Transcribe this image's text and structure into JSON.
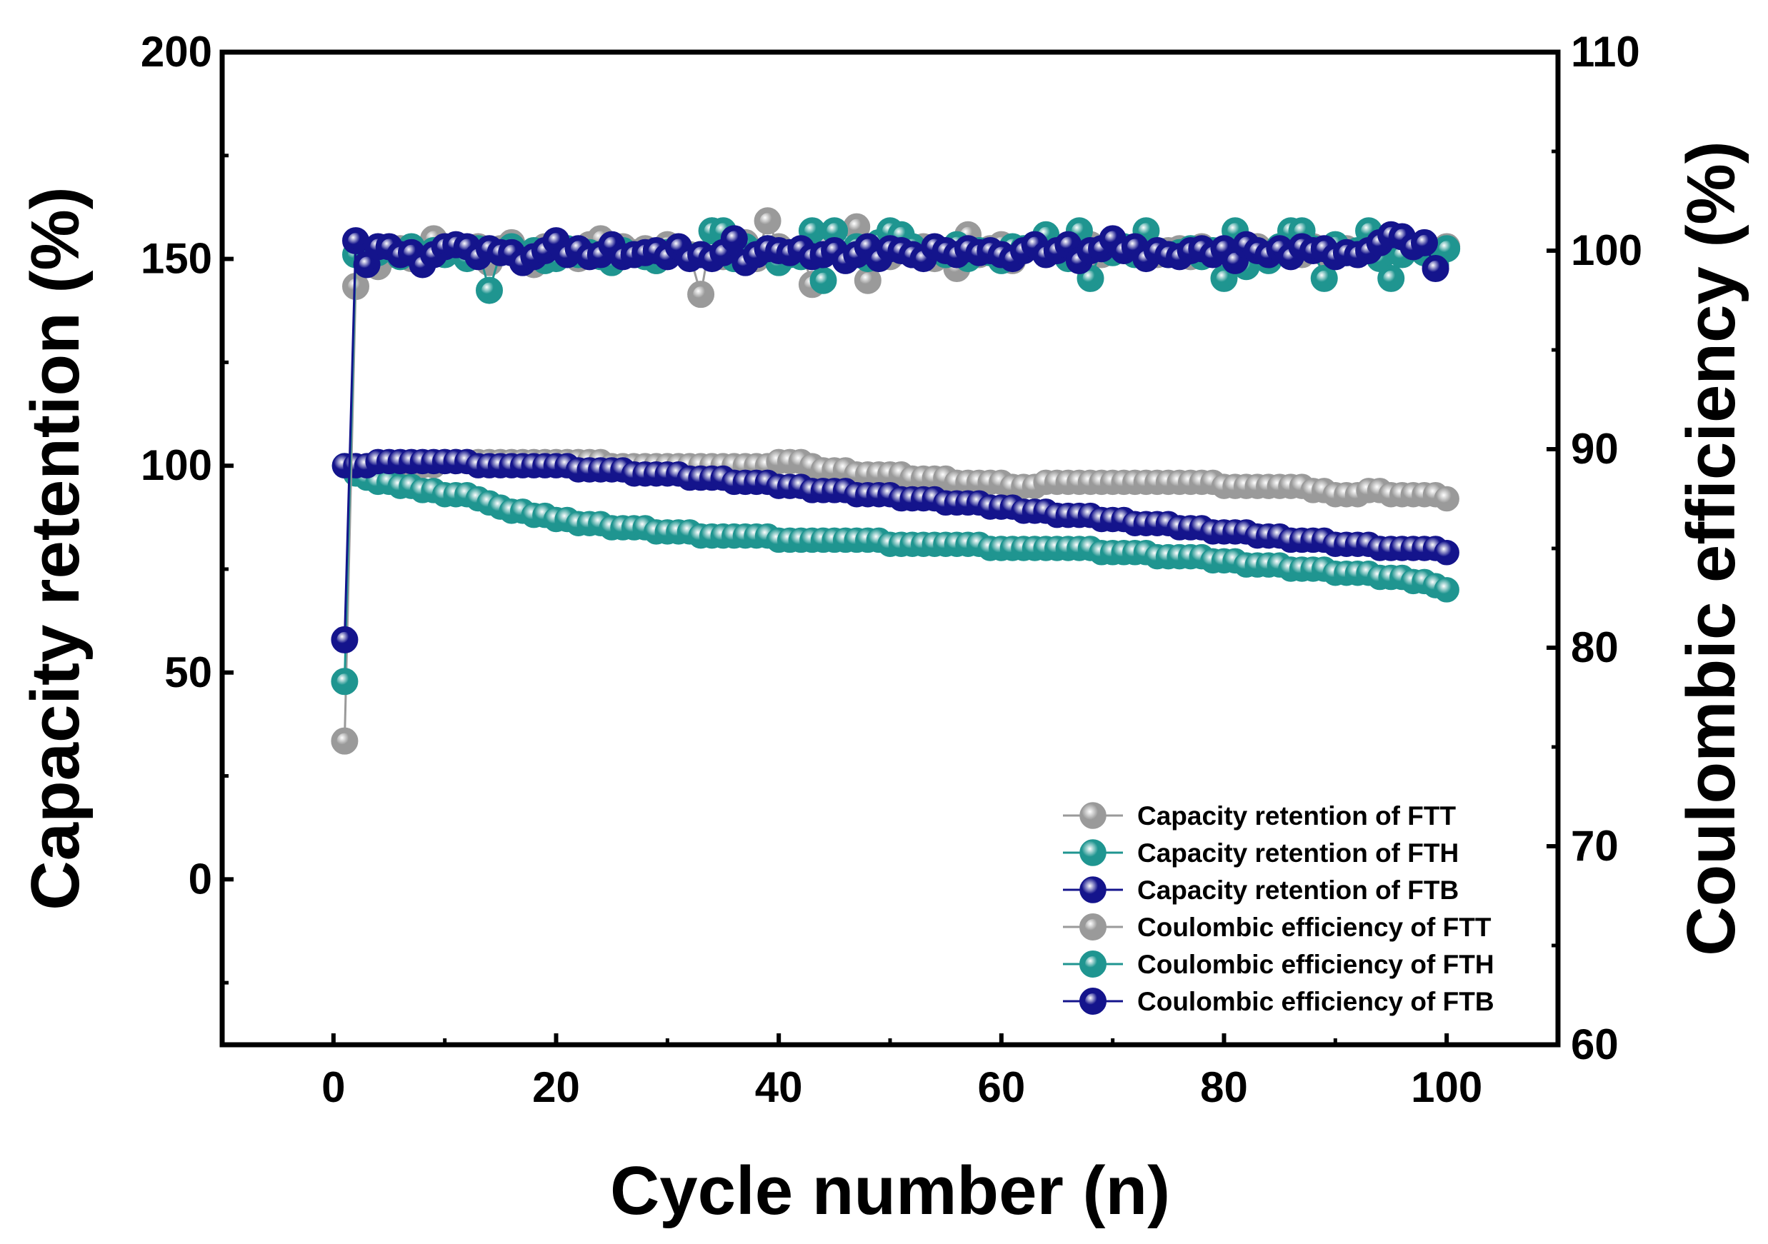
{
  "chart_data": {
    "type": "scatter",
    "xlabel": "Cycle number (n)",
    "ylabel": "Capacity retention (%)",
    "y2label": "Coulombic efficiency (%)",
    "xlim": [
      -10,
      110
    ],
    "ylim": [
      -40,
      200
    ],
    "y2lim": [
      60,
      110
    ],
    "xticks": [
      0,
      20,
      40,
      60,
      80,
      100
    ],
    "yticks": [
      0,
      50,
      100,
      150,
      200
    ],
    "y2ticks": [
      60,
      70,
      80,
      90,
      100,
      110
    ],
    "legend_position": "bottom-right",
    "series": [
      {
        "name": "Capacity retention of FTT",
        "axis": "left",
        "style": "solid",
        "color": "#9a9a9a",
        "values": [
          100,
          100,
          100,
          100,
          100,
          100,
          100,
          100,
          100,
          101,
          101,
          101,
          101,
          101,
          101,
          101,
          101,
          101,
          101,
          101,
          101,
          101,
          101,
          101,
          100,
          100,
          100,
          100,
          100,
          100,
          100,
          100,
          100,
          100,
          100,
          100,
          100,
          100,
          100,
          101,
          101,
          101,
          100,
          99,
          99,
          99,
          98,
          98,
          98,
          98,
          98,
          97,
          97,
          97,
          97,
          96,
          96,
          96,
          96,
          96,
          95,
          95,
          95,
          96,
          96,
          96,
          96,
          96,
          96,
          96,
          96,
          96,
          96,
          96,
          96,
          96,
          96,
          96,
          96,
          95,
          95,
          95,
          95,
          95,
          95,
          95,
          95,
          94,
          94,
          93,
          93,
          93,
          94,
          94,
          93,
          93,
          93,
          93,
          93,
          92
        ]
      },
      {
        "name": "Capacity retention of FTH",
        "axis": "left",
        "style": "solid",
        "color": "#1f9590",
        "values": [
          100,
          98,
          97,
          96,
          96,
          95,
          95,
          94,
          94,
          93,
          93,
          93,
          92,
          91,
          90,
          89,
          89,
          88,
          88,
          87,
          87,
          86,
          86,
          86,
          85,
          85,
          85,
          85,
          84,
          84,
          84,
          84,
          83,
          83,
          83,
          83,
          83,
          83,
          83,
          82,
          82,
          82,
          82,
          82,
          82,
          82,
          82,
          82,
          82,
          81,
          81,
          81,
          81,
          81,
          81,
          81,
          81,
          81,
          80,
          80,
          80,
          80,
          80,
          80,
          80,
          80,
          80,
          80,
          79,
          79,
          79,
          79,
          79,
          78,
          78,
          78,
          78,
          78,
          77,
          77,
          77,
          76,
          76,
          76,
          76,
          75,
          75,
          75,
          75,
          74,
          74,
          74,
          74,
          73,
          73,
          73,
          72,
          72,
          71,
          70
        ]
      },
      {
        "name": "Capacity retention of FTB",
        "axis": "left",
        "style": "solid",
        "color": "#14148c",
        "values": [
          100,
          100,
          100,
          101,
          101,
          101,
          101,
          101,
          101,
          101,
          101,
          101,
          100,
          100,
          100,
          100,
          100,
          100,
          100,
          100,
          100,
          99,
          99,
          99,
          99,
          99,
          98,
          98,
          98,
          98,
          98,
          97,
          97,
          97,
          97,
          96,
          96,
          96,
          96,
          95,
          95,
          95,
          94,
          94,
          94,
          94,
          93,
          93,
          93,
          93,
          92,
          92,
          92,
          92,
          91,
          91,
          91,
          91,
          90,
          90,
          90,
          89,
          89,
          89,
          88,
          88,
          88,
          88,
          87,
          87,
          87,
          86,
          86,
          86,
          86,
          85,
          85,
          85,
          84,
          84,
          84,
          84,
          83,
          83,
          83,
          82,
          82,
          82,
          82,
          81,
          81,
          81,
          81,
          80,
          80,
          80,
          80,
          80,
          80,
          79
        ]
      },
      {
        "name": "Coulombic efficiency of FTT",
        "axis": "right",
        "style": "hollow",
        "color": "#9a9a9a",
        "values": [
          75.3,
          98.2,
          99.5,
          99.2,
          99.8,
          100.1,
          99.6,
          99.9,
          100.6,
          100.2,
          100.0,
          99.8,
          100.2,
          99.4,
          100.1,
          100.4,
          99.7,
          99.3,
          100.2,
          99.8,
          100.1,
          99.6,
          100.3,
          100.6,
          99.8,
          100.2,
          99.9,
          100.1,
          99.5,
          100.3,
          100.0,
          99.8,
          97.8,
          101.0,
          99.7,
          100.2,
          100.4,
          99.6,
          101.5,
          100.2,
          99.8,
          100.1,
          98.3,
          100.3,
          100.0,
          99.6,
          101.2,
          98.5,
          100.1,
          99.7,
          100.4,
          99.9,
          100.2,
          99.6,
          100.0,
          99.1,
          100.8,
          99.8,
          100.1,
          100.3,
          99.5,
          100.0,
          100.2,
          99.8,
          100.1,
          100.0,
          99.7,
          100.3,
          99.8,
          100.1,
          100.0,
          99.9,
          100.2,
          99.8,
          100.0,
          100.1,
          99.7,
          100.2,
          99.9,
          100.0,
          100.1,
          99.8,
          100.2,
          99.9,
          100.0,
          100.1,
          99.8,
          100.2,
          99.9,
          100.0,
          100.1,
          99.8,
          100.2,
          99.9,
          100.0,
          100.1,
          100.2,
          99.9,
          100.0,
          100.2
        ]
      },
      {
        "name": "Coulombic efficiency of FTH",
        "axis": "right",
        "style": "hollow",
        "color": "#1f9590",
        "values": [
          78.3,
          99.8,
          99.6,
          99.9,
          100.1,
          99.7,
          100.2,
          99.5,
          100.0,
          99.8,
          100.2,
          99.6,
          100.1,
          98.0,
          99.9,
          100.2,
          99.7,
          100.0,
          99.5,
          99.6,
          100.1,
          99.8,
          99.9,
          99.7,
          99.4,
          100.0,
          99.8,
          99.7,
          99.5,
          99.9,
          100.0,
          99.7,
          99.8,
          101.0,
          101.0,
          99.6,
          100.2,
          99.9,
          100.1,
          99.4,
          99.8,
          99.7,
          101.0,
          98.5,
          101.0,
          99.8,
          100.2,
          99.6,
          100.4,
          101.0,
          100.8,
          100.2,
          99.7,
          100.0,
          99.8,
          100.3,
          99.6,
          100.0,
          99.9,
          99.5,
          100.2,
          100.1,
          100.3,
          100.8,
          100.1,
          99.6,
          101.0,
          98.6,
          100.1,
          99.9,
          100.2,
          99.8,
          101.0,
          100.0,
          99.8,
          99.9,
          100.1,
          99.7,
          100.0,
          98.6,
          101.0,
          99.2,
          100.0,
          99.5,
          100.2,
          101.0,
          101.0,
          100.1,
          98.6,
          100.3,
          99.9,
          100.0,
          101.0,
          99.6,
          98.6,
          99.8,
          100.2,
          99.9,
          99.3,
          100.1
        ]
      },
      {
        "name": "Coulombic efficiency of FTB",
        "axis": "right",
        "style": "hollow",
        "color": "#14148c",
        "values": [
          80.4,
          100.5,
          99.3,
          100.2,
          100.2,
          99.8,
          99.9,
          99.3,
          99.8,
          100.2,
          100.3,
          100.2,
          99.7,
          100.1,
          99.9,
          99.9,
          99.4,
          99.7,
          100.0,
          100.5,
          99.8,
          100.1,
          99.7,
          99.8,
          100.3,
          99.7,
          99.8,
          99.9,
          100.0,
          99.7,
          100.2,
          99.6,
          99.8,
          99.6,
          99.9,
          100.6,
          99.4,
          99.8,
          100.1,
          100.0,
          99.9,
          100.1,
          99.7,
          99.8,
          100.0,
          99.5,
          99.8,
          100.2,
          99.6,
          100.1,
          100.0,
          99.8,
          99.6,
          100.2,
          100.0,
          99.8,
          100.1,
          99.9,
          100.0,
          99.8,
          99.6,
          100.0,
          100.3,
          99.8,
          100.0,
          100.3,
          99.5,
          100.0,
          100.1,
          100.6,
          100.0,
          100.2,
          99.6,
          100.0,
          99.8,
          99.7,
          100.0,
          100.1,
          99.8,
          100.1,
          99.5,
          100.3,
          100.0,
          99.8,
          100.1,
          99.7,
          100.2,
          100.0,
          100.1,
          99.7,
          99.9,
          99.8,
          100.0,
          100.4,
          100.8,
          100.7,
          100.2,
          100.4,
          99.1
        ]
      }
    ]
  }
}
